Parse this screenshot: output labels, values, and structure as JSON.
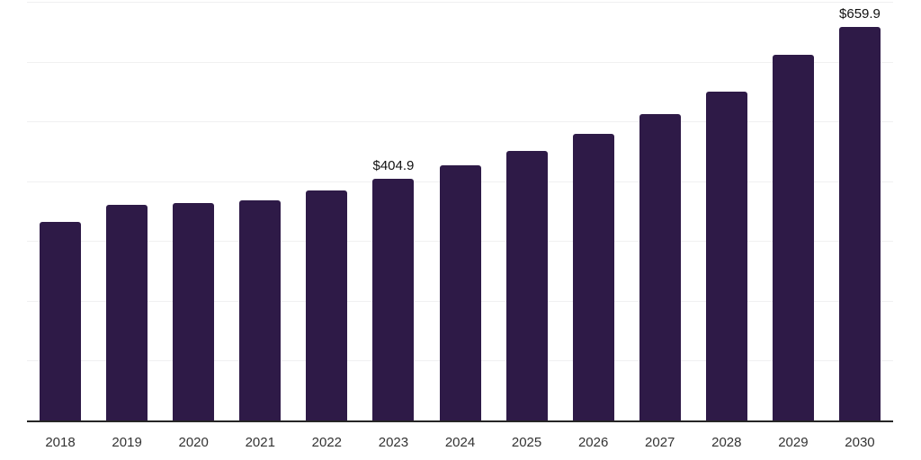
{
  "chart_data": {
    "type": "bar",
    "title": "",
    "xlabel": "",
    "ylabel": "",
    "categories": [
      "2018",
      "2019",
      "2020",
      "2021",
      "2022",
      "2023",
      "2024",
      "2025",
      "2026",
      "2027",
      "2028",
      "2029",
      "2030"
    ],
    "values": [
      333.1,
      361.5,
      364.5,
      369.4,
      385.5,
      404.9,
      427.4,
      452.8,
      481.3,
      514.2,
      551.6,
      613.0,
      659.9
    ],
    "value_labels": {
      "2023": "$404.9",
      "2030": "$659.9"
    },
    "ylim": [
      0,
      700
    ],
    "gridline_step": 100,
    "grid": "horizontal-only",
    "legend": "none",
    "y_tick_labels_visible": false,
    "bar_color": "#2E1A47",
    "axis_line_color": "#262626",
    "gridline_color": "#F0F0F1",
    "value_label_color": "#111111",
    "tick_label_color": "#333333",
    "background_color": "#FFFFFF"
  }
}
